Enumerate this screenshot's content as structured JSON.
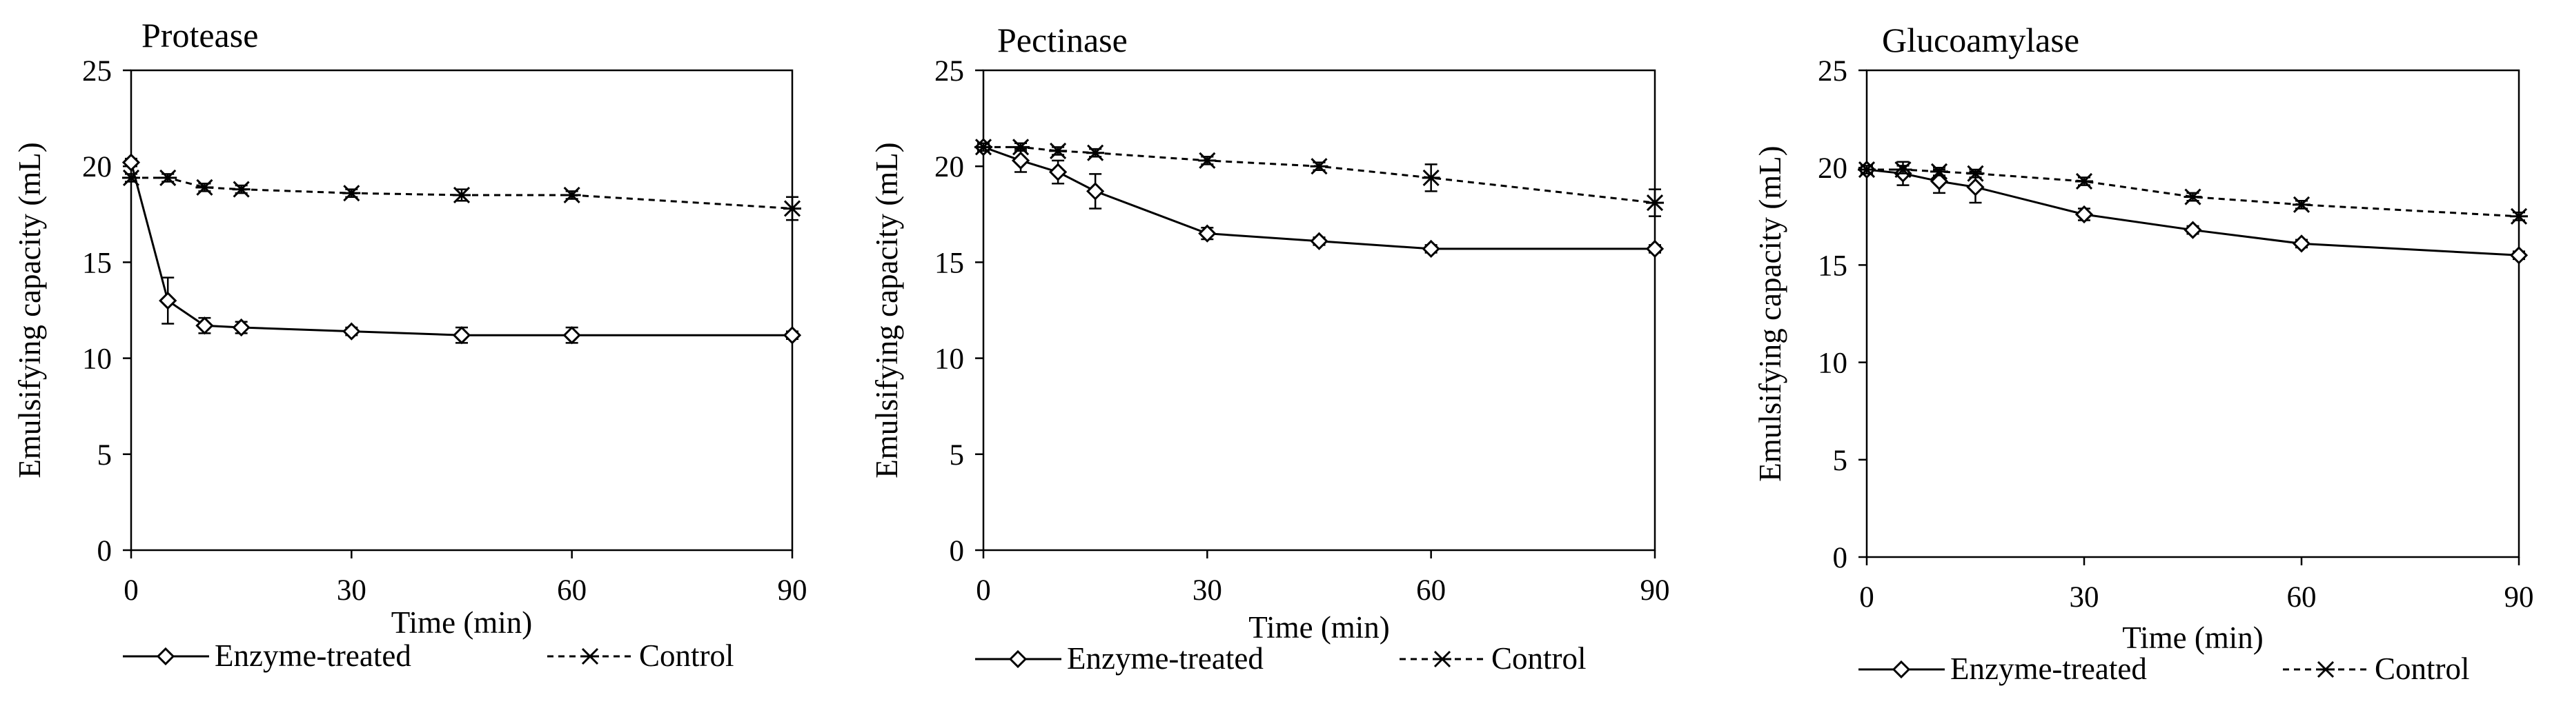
{
  "chart_data": [
    {
      "type": "line",
      "title": "Protease",
      "xlabel": "Time (min)",
      "ylabel": "Emulsifying capacity (mL)",
      "xlim": [
        0,
        90
      ],
      "ylim": [
        0,
        25
      ],
      "xticks": [
        0,
        30,
        60,
        90
      ],
      "yticks": [
        0,
        5,
        10,
        15,
        20,
        25
      ],
      "grid": false,
      "x": [
        0,
        5,
        10,
        15,
        30,
        45,
        60,
        90
      ],
      "series": [
        {
          "name": "Enzyme-treated",
          "marker": "diamond",
          "line": "solid",
          "values": [
            20.2,
            13.0,
            11.7,
            11.6,
            11.4,
            11.2,
            11.2,
            11.2
          ],
          "errors": [
            0.2,
            1.2,
            0.4,
            0.3,
            0.2,
            0.4,
            0.4,
            0.2
          ]
        },
        {
          "name": "Control",
          "marker": "asterisk",
          "line": "dashed",
          "values": [
            19.4,
            19.4,
            18.9,
            18.8,
            18.6,
            18.5,
            18.5,
            17.8
          ],
          "errors": [
            0.2,
            0.2,
            0.2,
            0.2,
            0.2,
            0.3,
            0.2,
            0.6
          ]
        }
      ]
    },
    {
      "type": "line",
      "title": "Pectinase",
      "xlabel": "Time (min)",
      "ylabel": "Emulsifying capacity (mL)",
      "xlim": [
        0,
        90
      ],
      "ylim": [
        0,
        25
      ],
      "xticks": [
        0,
        30,
        60,
        90
      ],
      "yticks": [
        0,
        5,
        10,
        15,
        20,
        25
      ],
      "grid": false,
      "x": [
        0,
        5,
        10,
        15,
        30,
        45,
        60,
        90
      ],
      "series": [
        {
          "name": "Enzyme-treated",
          "marker": "diamond",
          "line": "solid",
          "values": [
            21.0,
            20.3,
            19.7,
            18.7,
            16.5,
            16.1,
            15.7,
            15.7
          ],
          "errors": [
            0.2,
            0.6,
            0.6,
            0.9,
            0.3,
            0.2,
            0.2,
            0.2
          ]
        },
        {
          "name": "Control",
          "marker": "asterisk",
          "line": "dashed",
          "values": [
            21.0,
            21.0,
            20.8,
            20.7,
            20.3,
            20.0,
            19.4,
            18.1
          ],
          "errors": [
            0.2,
            0.2,
            0.2,
            0.2,
            0.2,
            0.2,
            0.7,
            0.7
          ]
        }
      ]
    },
    {
      "type": "line",
      "title": "Glucoamylase",
      "xlabel": "Time (min)",
      "ylabel": "Emulsifying capacity (mL)",
      "xlim": [
        0,
        90
      ],
      "ylim": [
        0,
        25
      ],
      "xticks": [
        0,
        30,
        60,
        90
      ],
      "yticks": [
        0,
        5,
        10,
        15,
        20,
        25
      ],
      "grid": false,
      "x": [
        0,
        5,
        10,
        15,
        30,
        45,
        60,
        90
      ],
      "series": [
        {
          "name": "Enzyme-treated",
          "marker": "diamond",
          "line": "solid",
          "values": [
            19.9,
            19.7,
            19.3,
            19.0,
            17.6,
            16.8,
            16.1,
            15.5
          ],
          "errors": [
            0.2,
            0.6,
            0.6,
            0.8,
            0.3,
            0.2,
            0.2,
            0.2
          ]
        },
        {
          "name": "Control",
          "marker": "asterisk",
          "line": "dashed",
          "values": [
            19.9,
            19.9,
            19.8,
            19.7,
            19.3,
            18.5,
            18.1,
            17.5
          ],
          "errors": [
            0.2,
            0.2,
            0.2,
            0.2,
            0.2,
            0.2,
            0.2,
            0.2
          ]
        }
      ]
    }
  ]
}
